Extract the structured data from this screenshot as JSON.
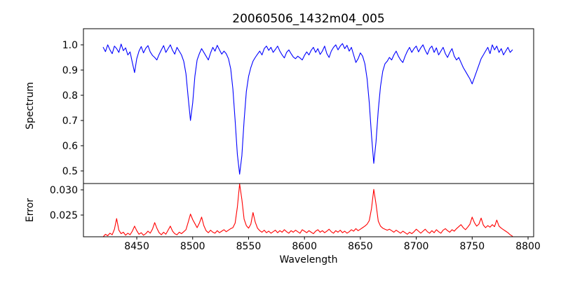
{
  "chart_data": {
    "type": "line",
    "title": "20060506_1432m04_005",
    "xlabel": "Wavelength",
    "xlim": [
      8402.3,
      8805.0
    ],
    "xticks": [
      8450,
      8500,
      8550,
      8600,
      8650,
      8700,
      8750,
      8800
    ],
    "xtick_labels": [
      "8450",
      "8500",
      "8550",
      "8600",
      "8650",
      "8700",
      "8750",
      "8800"
    ],
    "x_start": 8420,
    "x_step": 2,
    "grid": false,
    "legend": "none",
    "subplots": [
      {
        "name": "spectrum-panel",
        "ylabel": "Spectrum",
        "ylim": [
          0.45,
          1.0639
        ],
        "yticks": [
          0.5,
          0.6,
          0.7,
          0.8,
          0.9,
          1.0
        ],
        "ytick_labels": [
          "0.5",
          "0.6",
          "0.7",
          "0.8",
          "0.9",
          "1.0"
        ],
        "series_name": "spectrum",
        "color": "#0000ff",
        "values": [
          0.99,
          0.973,
          1.0,
          0.98,
          0.965,
          0.995,
          0.985,
          0.97,
          1.003,
          0.977,
          0.988,
          0.96,
          0.972,
          0.93,
          0.89,
          0.945,
          0.975,
          0.993,
          0.968,
          0.986,
          0.997,
          0.972,
          0.958,
          0.95,
          0.94,
          0.962,
          0.98,
          0.997,
          0.97,
          0.985,
          1.0,
          0.978,
          0.963,
          0.99,
          0.975,
          0.96,
          0.935,
          0.885,
          0.79,
          0.7,
          0.77,
          0.875,
          0.94,
          0.965,
          0.985,
          0.97,
          0.955,
          0.94,
          0.968,
          0.99,
          0.975,
          0.998,
          0.98,
          0.963,
          0.975,
          0.965,
          0.945,
          0.905,
          0.825,
          0.7,
          0.565,
          0.487,
          0.56,
          0.7,
          0.815,
          0.875,
          0.91,
          0.935,
          0.95,
          0.963,
          0.975,
          0.96,
          0.985,
          0.995,
          0.978,
          0.99,
          0.97,
          0.982,
          0.995,
          0.975,
          0.96,
          0.948,
          0.97,
          0.98,
          0.965,
          0.952,
          0.945,
          0.955,
          0.948,
          0.94,
          0.958,
          0.972,
          0.96,
          0.978,
          0.99,
          0.97,
          0.985,
          0.962,
          0.975,
          0.995,
          0.965,
          0.95,
          0.975,
          0.99,
          1.0,
          0.98,
          0.995,
          1.005,
          0.985,
          0.998,
          0.975,
          0.99,
          0.96,
          0.93,
          0.945,
          0.968,
          0.955,
          0.925,
          0.865,
          0.77,
          0.64,
          0.53,
          0.615,
          0.74,
          0.835,
          0.895,
          0.925,
          0.935,
          0.95,
          0.94,
          0.96,
          0.975,
          0.955,
          0.94,
          0.93,
          0.955,
          0.975,
          0.99,
          0.97,
          0.985,
          0.995,
          0.972,
          0.988,
          1.0,
          0.978,
          0.962,
          0.985,
          0.995,
          0.97,
          0.988,
          0.96,
          0.975,
          0.99,
          0.965,
          0.95,
          0.97,
          0.985,
          0.955,
          0.94,
          0.95,
          0.93,
          0.91,
          0.895,
          0.88,
          0.865,
          0.845,
          0.87,
          0.895,
          0.92,
          0.945,
          0.96,
          0.975,
          0.99,
          0.965,
          1.0,
          0.98,
          0.995,
          0.97,
          0.985,
          0.96,
          0.975,
          0.99,
          0.97,
          0.98
        ]
      },
      {
        "name": "error-panel",
        "ylabel": "Error",
        "ylim": [
          0.020694,
          0.03125
        ],
        "yticks": [
          0.025,
          0.03
        ],
        "ytick_labels": [
          "0.025",
          "0.030"
        ],
        "series_name": "error",
        "color": "#ff0000",
        "values": [
          0.0207,
          0.0212,
          0.0209,
          0.0214,
          0.0211,
          0.0222,
          0.0243,
          0.022,
          0.0213,
          0.0216,
          0.021,
          0.0214,
          0.0211,
          0.0218,
          0.0228,
          0.0219,
          0.0212,
          0.0215,
          0.021,
          0.0213,
          0.0218,
          0.0214,
          0.0222,
          0.0235,
          0.0224,
          0.0215,
          0.0211,
          0.0216,
          0.0212,
          0.022,
          0.0228,
          0.0218,
          0.0213,
          0.0211,
          0.0216,
          0.0213,
          0.0217,
          0.0221,
          0.0236,
          0.0252,
          0.0241,
          0.0233,
          0.0225,
          0.0234,
          0.0246,
          0.0229,
          0.0219,
          0.0215,
          0.022,
          0.0216,
          0.0214,
          0.0219,
          0.0215,
          0.0218,
          0.0221,
          0.0217,
          0.022,
          0.0223,
          0.0225,
          0.0234,
          0.0266,
          0.0312,
          0.0281,
          0.0242,
          0.0229,
          0.0224,
          0.0232,
          0.0255,
          0.0236,
          0.0224,
          0.0219,
          0.0216,
          0.022,
          0.0215,
          0.0218,
          0.0214,
          0.0217,
          0.022,
          0.0215,
          0.0219,
          0.0216,
          0.0221,
          0.0217,
          0.0214,
          0.0219,
          0.0216,
          0.022,
          0.0217,
          0.0214,
          0.0221,
          0.0218,
          0.0215,
          0.0219,
          0.0216,
          0.0213,
          0.0218,
          0.0221,
          0.0216,
          0.0219,
          0.0215,
          0.0218,
          0.0222,
          0.0217,
          0.0214,
          0.0219,
          0.0216,
          0.022,
          0.0215,
          0.0218,
          0.0214,
          0.0217,
          0.0221,
          0.0218,
          0.0223,
          0.0219,
          0.0222,
          0.0225,
          0.0228,
          0.0232,
          0.0239,
          0.0263,
          0.0301,
          0.0272,
          0.0238,
          0.0228,
          0.0224,
          0.0222,
          0.022,
          0.0222,
          0.0219,
          0.0216,
          0.022,
          0.0217,
          0.0214,
          0.0218,
          0.0215,
          0.0212,
          0.0216,
          0.0213,
          0.0217,
          0.0222,
          0.0218,
          0.0214,
          0.0218,
          0.0222,
          0.0217,
          0.0214,
          0.0219,
          0.0215,
          0.0221,
          0.0217,
          0.0214,
          0.022,
          0.0223,
          0.0219,
          0.0216,
          0.0221,
          0.0218,
          0.0223,
          0.0227,
          0.0231,
          0.0225,
          0.0221,
          0.0226,
          0.0232,
          0.0246,
          0.0235,
          0.0228,
          0.0232,
          0.0244,
          0.023,
          0.0225,
          0.0229,
          0.0226,
          0.0231,
          0.0227,
          0.024,
          0.0228,
          0.0224,
          0.0221,
          0.0218,
          0.0215,
          0.0211,
          0.0208
        ]
      }
    ]
  }
}
